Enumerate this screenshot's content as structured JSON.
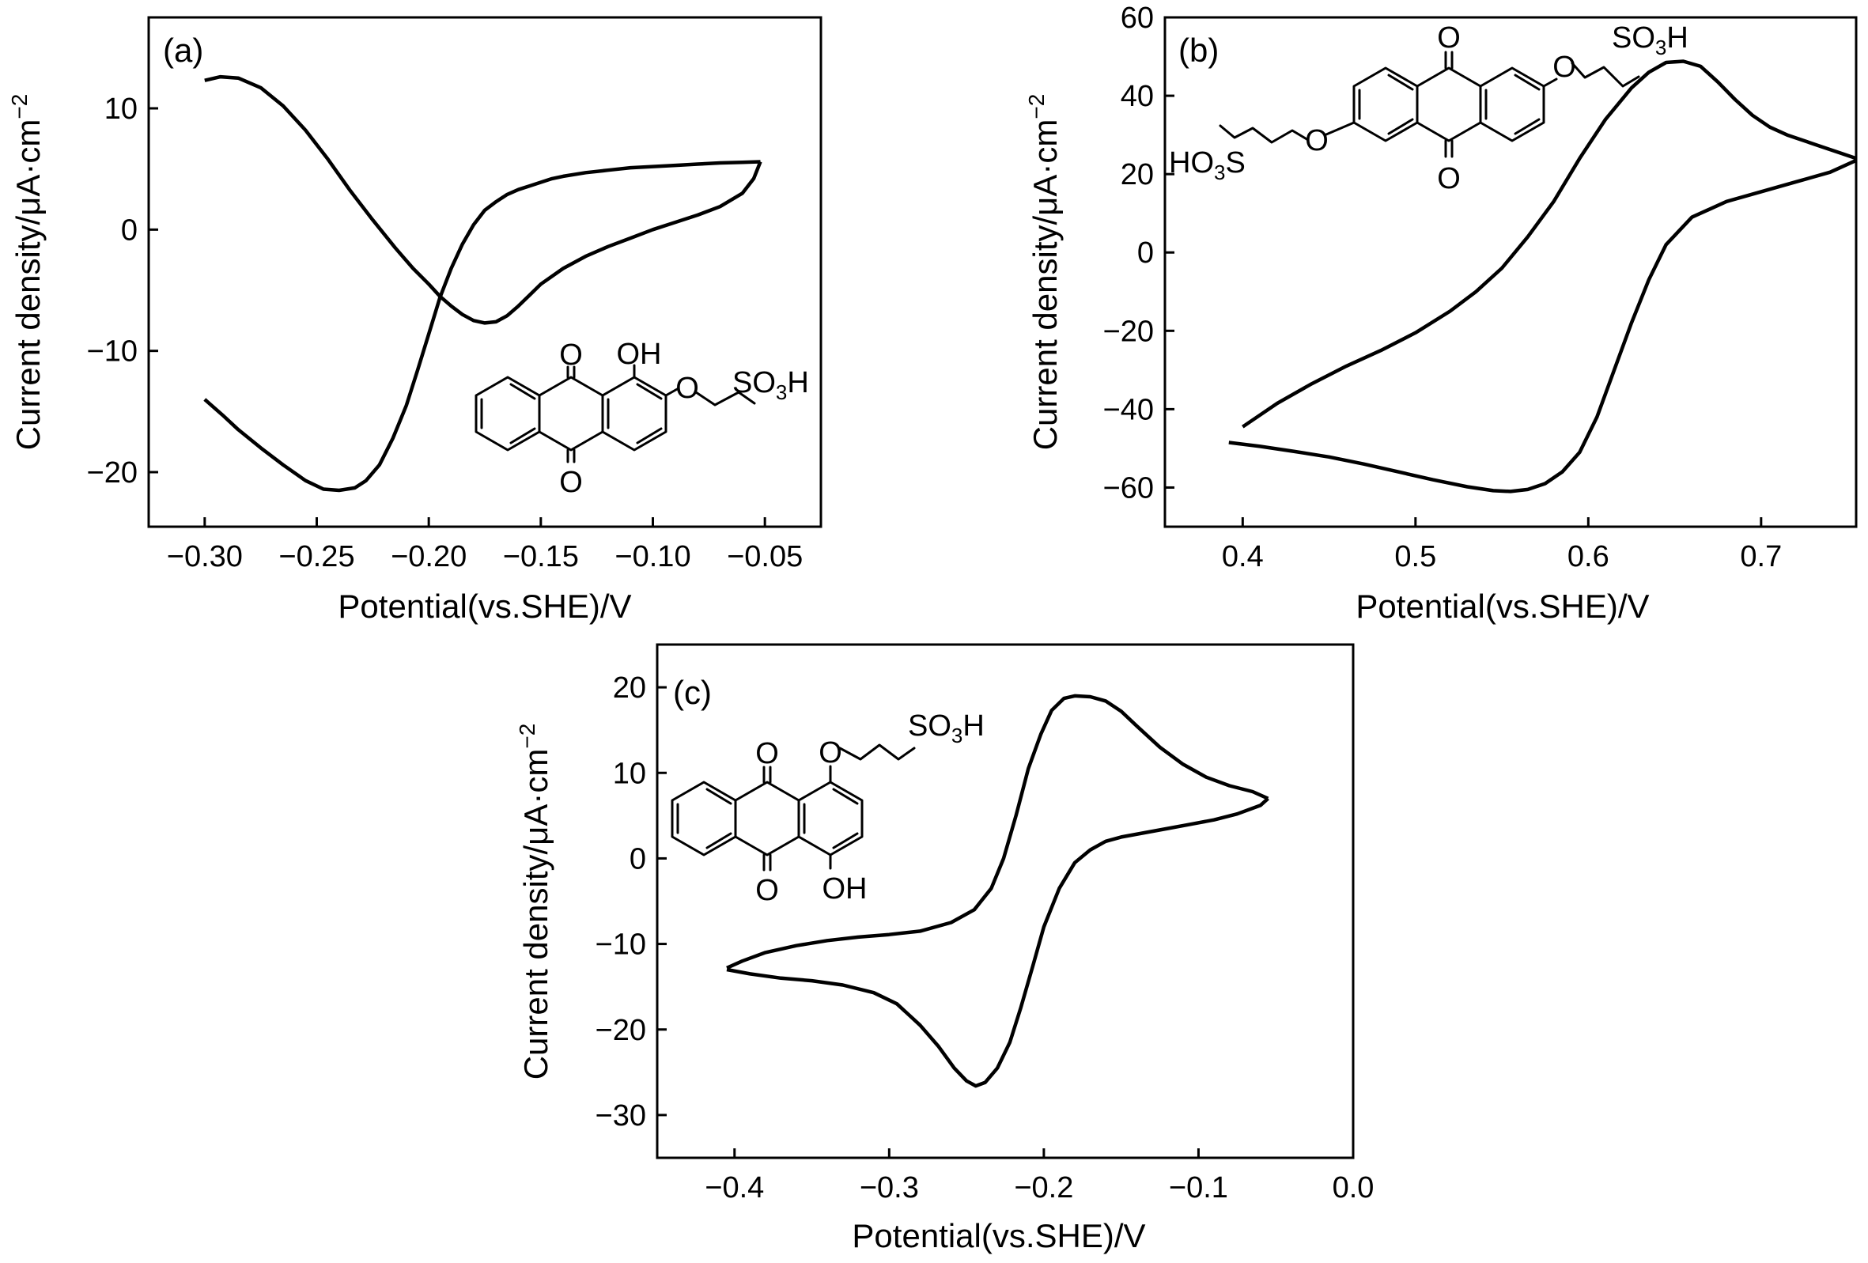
{
  "chart_data": [
    {
      "id": "a",
      "type": "line",
      "panel_label": "(a)",
      "xlabel": "Potential(vs.SHE)/V",
      "ylabel_main": "Current density/μA·cm",
      "ylabel_sup": "−2",
      "xlim": [
        -0.325,
        -0.025
      ],
      "ylim": [
        -24.5,
        17.5
      ],
      "xticks": [
        -0.3,
        -0.25,
        -0.2,
        -0.15,
        -0.1,
        -0.05
      ],
      "xtick_labels": [
        "−0.30",
        "−0.25",
        "−0.20",
        "−0.15",
        "−0.10",
        "−0.05"
      ],
      "yticks": [
        10,
        0,
        -10,
        -20
      ],
      "ytick_labels": [
        "10",
        "0",
        "−10",
        "−20"
      ],
      "grid": false,
      "molecule_labels": {
        "oh": "OH",
        "o1": "O",
        "o2": "O",
        "ether_o": "O",
        "so3h_main": "SO",
        "so3h_sub": "3",
        "so3h_h": "H"
      },
      "series": [
        {
          "x": [
            -0.3,
            -0.292,
            -0.285,
            -0.275,
            -0.265,
            -0.255,
            -0.247,
            -0.24,
            -0.233,
            -0.228,
            -0.222,
            -0.216,
            -0.21,
            -0.205,
            -0.2,
            -0.195,
            -0.19,
            -0.185,
            -0.18,
            -0.175,
            -0.17,
            -0.165,
            -0.16,
            -0.155,
            -0.15,
            -0.145,
            -0.14,
            -0.13,
            -0.12,
            -0.11,
            -0.1,
            -0.09,
            -0.08,
            -0.07,
            -0.06,
            -0.052
          ],
          "y": [
            -14.0,
            -15.3,
            -16.5,
            -18.0,
            -19.4,
            -20.7,
            -21.4,
            -21.5,
            -21.3,
            -20.7,
            -19.4,
            -17.2,
            -14.5,
            -11.6,
            -8.6,
            -5.6,
            -3.2,
            -1.2,
            0.4,
            1.6,
            2.3,
            2.9,
            3.3,
            3.6,
            3.9,
            4.2,
            4.4,
            4.7,
            4.9,
            5.1,
            5.2,
            5.3,
            5.4,
            5.5,
            5.55,
            5.6
          ]
        },
        {
          "x": [
            -0.052,
            -0.055,
            -0.06,
            -0.07,
            -0.08,
            -0.09,
            -0.1,
            -0.11,
            -0.12,
            -0.13,
            -0.14,
            -0.15,
            -0.155,
            -0.16,
            -0.165,
            -0.17,
            -0.175,
            -0.18,
            -0.185,
            -0.19,
            -0.195,
            -0.2,
            -0.207,
            -0.215,
            -0.225,
            -0.235,
            -0.245,
            -0.255,
            -0.265,
            -0.275,
            -0.285,
            -0.293,
            -0.3
          ],
          "y": [
            5.6,
            4.2,
            3.0,
            1.9,
            1.2,
            0.6,
            0.0,
            -0.7,
            -1.4,
            -2.2,
            -3.2,
            -4.5,
            -5.4,
            -6.3,
            -7.1,
            -7.6,
            -7.7,
            -7.5,
            -7.0,
            -6.3,
            -5.5,
            -4.5,
            -3.2,
            -1.5,
            0.8,
            3.2,
            5.8,
            8.2,
            10.2,
            11.7,
            12.5,
            12.6,
            12.3
          ]
        }
      ]
    },
    {
      "id": "b",
      "type": "line",
      "panel_label": "(b)",
      "xlabel": "Potential(vs.SHE)/V",
      "ylabel_main": "Current density/μA·cm",
      "ylabel_sup": "−2",
      "xlim": [
        0.355,
        0.755
      ],
      "ylim": [
        -70,
        60
      ],
      "xticks": [
        0.4,
        0.5,
        0.6,
        0.7
      ],
      "xtick_labels": [
        "0.4",
        "0.5",
        "0.6",
        "0.7"
      ],
      "yticks": [
        60,
        40,
        20,
        0,
        -20,
        -40,
        -60
      ],
      "ytick_labels": [
        "60",
        "40",
        "20",
        "0",
        "−20",
        "−40",
        "−60"
      ],
      "grid": false,
      "molecule_labels": {
        "o_top": "O",
        "o_bottom": "O",
        "o_left": "O",
        "o_right": "O",
        "ho3s_pre": "HO",
        "ho3s_sub": "3",
        "ho3s_post": "S",
        "so3h_main": "SO",
        "so3h_sub": "3",
        "so3h_h": "H"
      },
      "series": [
        {
          "x": [
            0.392,
            0.41,
            0.43,
            0.45,
            0.47,
            0.49,
            0.51,
            0.53,
            0.545,
            0.555,
            0.565,
            0.575,
            0.585,
            0.595,
            0.605,
            0.615,
            0.625,
            0.635,
            0.645,
            0.66,
            0.68,
            0.7,
            0.72,
            0.74,
            0.755
          ],
          "y": [
            -48.5,
            -49.5,
            -50.8,
            -52.2,
            -54.0,
            -56.0,
            -58.0,
            -59.8,
            -60.8,
            -61.0,
            -60.5,
            -59.0,
            -56.0,
            -51.0,
            -42.0,
            -30.0,
            -18.0,
            -7.0,
            2.0,
            9.0,
            13.0,
            15.5,
            18.0,
            20.5,
            23.5
          ]
        },
        {
          "x": [
            0.755,
            0.745,
            0.735,
            0.725,
            0.715,
            0.705,
            0.695,
            0.685,
            0.675,
            0.665,
            0.655,
            0.645,
            0.635,
            0.625,
            0.61,
            0.595,
            0.58,
            0.565,
            0.55,
            0.535,
            0.52,
            0.5,
            0.48,
            0.46,
            0.44,
            0.42,
            0.4
          ],
          "y": [
            24.0,
            25.5,
            27.0,
            28.5,
            30.0,
            32.0,
            35.0,
            39.0,
            43.5,
            47.5,
            48.8,
            48.5,
            46.0,
            42.0,
            34.0,
            24.0,
            13.0,
            4.0,
            -4.0,
            -10.0,
            -15.0,
            -20.5,
            -25.0,
            -29.0,
            -33.5,
            -38.5,
            -44.5
          ]
        }
      ]
    },
    {
      "id": "c",
      "type": "line",
      "panel_label": "(c)",
      "xlabel": "Potential(vs.SHE)/V",
      "ylabel_main": "Current density/μA·cm",
      "ylabel_sup": "−2",
      "xlim": [
        -0.45,
        0.0
      ],
      "ylim": [
        -35,
        25
      ],
      "xticks": [
        -0.4,
        -0.3,
        -0.2,
        -0.1,
        0.0
      ],
      "xtick_labels": [
        "−0.4",
        "−0.3",
        "−0.2",
        "−0.1",
        "0.0"
      ],
      "yticks": [
        20,
        10,
        0,
        -10,
        -20,
        -30
      ],
      "ytick_labels": [
        "20",
        "10",
        "0",
        "−10",
        "−20",
        "−30"
      ],
      "grid": false,
      "molecule_labels": {
        "o1": "O",
        "o2": "O",
        "ether_o": "O",
        "oh": "OH",
        "so3h_main": "SO",
        "so3h_sub": "3",
        "so3h_h": "H"
      },
      "series": [
        {
          "x": [
            -0.405,
            -0.39,
            -0.37,
            -0.35,
            -0.33,
            -0.31,
            -0.295,
            -0.28,
            -0.268,
            -0.258,
            -0.25,
            -0.244,
            -0.238,
            -0.23,
            -0.222,
            -0.215,
            -0.207,
            -0.2,
            -0.19,
            -0.18,
            -0.17,
            -0.16,
            -0.15,
            -0.135,
            -0.12,
            -0.105,
            -0.09,
            -0.075,
            -0.06,
            -0.055
          ],
          "y": [
            -13.0,
            -13.5,
            -14.0,
            -14.3,
            -14.8,
            -15.7,
            -17.0,
            -19.5,
            -22.0,
            -24.5,
            -26.0,
            -26.6,
            -26.2,
            -24.5,
            -21.5,
            -17.5,
            -12.5,
            -8.0,
            -3.5,
            -0.5,
            1.0,
            2.0,
            2.5,
            3.0,
            3.5,
            4.0,
            4.5,
            5.2,
            6.2,
            7.0
          ]
        },
        {
          "x": [
            -0.055,
            -0.065,
            -0.08,
            -0.095,
            -0.11,
            -0.125,
            -0.14,
            -0.15,
            -0.16,
            -0.17,
            -0.18,
            -0.187,
            -0.195,
            -0.202,
            -0.21,
            -0.218,
            -0.226,
            -0.234,
            -0.245,
            -0.26,
            -0.28,
            -0.3,
            -0.32,
            -0.34,
            -0.36,
            -0.38,
            -0.395,
            -0.405
          ],
          "y": [
            7.0,
            7.8,
            8.5,
            9.5,
            11.0,
            13.0,
            15.5,
            17.2,
            18.4,
            18.9,
            19.0,
            18.7,
            17.3,
            14.5,
            10.5,
            5.0,
            0.0,
            -3.5,
            -6.0,
            -7.5,
            -8.5,
            -8.9,
            -9.2,
            -9.6,
            -10.2,
            -11.0,
            -12.0,
            -12.8
          ]
        }
      ]
    }
  ]
}
